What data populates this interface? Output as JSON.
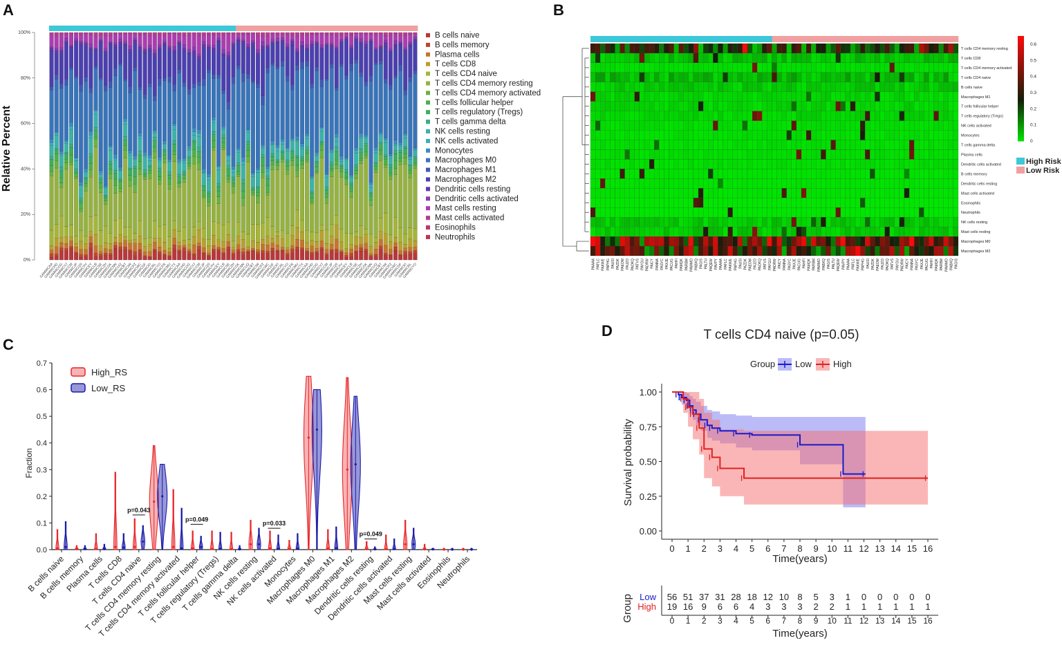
{
  "panels": {
    "a": {
      "label": "A",
      "ylabel": "Relative Percent",
      "yticks": [
        "0%",
        "20%",
        "40%",
        "60%",
        "80%",
        "100%"
      ],
      "legend": [
        {
          "name": "B cells naive",
          "color": "#b8373a"
        },
        {
          "name": "B cells memory",
          "color": "#c0452d"
        },
        {
          "name": "Plasma cells",
          "color": "#c5742c"
        },
        {
          "name": "T cells CD8",
          "color": "#b8a02c"
        },
        {
          "name": "T cells CD4 naive",
          "color": "#a6b536"
        },
        {
          "name": "T cells CD4 memory resting",
          "color": "#95b240"
        },
        {
          "name": "T cells CD4 memory activated",
          "color": "#6cb23f"
        },
        {
          "name": "T cells follicular helper",
          "color": "#4fb04a"
        },
        {
          "name": "T cells regulatory (Tregs)",
          "color": "#3eae5c"
        },
        {
          "name": "T cells gamma delta",
          "color": "#3aae83"
        },
        {
          "name": "NK cells resting",
          "color": "#3ab3a8"
        },
        {
          "name": "NK cells activated",
          "color": "#3aaec0"
        },
        {
          "name": "Monocytes",
          "color": "#3b8ec2"
        },
        {
          "name": "Macrophages M0",
          "color": "#3874ba"
        },
        {
          "name": "Macrophages M1",
          "color": "#3e5ab5"
        },
        {
          "name": "Macrophages M2",
          "color": "#4b3fb0"
        },
        {
          "name": "Dendritic cells resting",
          "color": "#6436ad"
        },
        {
          "name": "Dendritic cells activated",
          "color": "#8a3bb2"
        },
        {
          "name": "Mast cells resting",
          "color": "#ad3cb0"
        },
        {
          "name": "Mast cells activated",
          "color": "#b83c8d"
        },
        {
          "name": "Eosinophils",
          "color": "#b83a6b"
        },
        {
          "name": "Neutrophils",
          "color": "#b8374f"
        }
      ],
      "group_colors": {
        "high": "#3cc8d8",
        "low": "#f0a0a0"
      },
      "n_samples": 75,
      "n_high": 38
    },
    "b": {
      "label": "B",
      "rows": [
        "T cells CD4 memory resting",
        "T cells CD8",
        "T cells CD4 memory activated",
        "T cells CD4 naive",
        "B cells naive",
        "Macrophages M1",
        "T cells follicular helper",
        "T cells regulatory (Tregs)",
        "NK cells activated",
        "Monocytes",
        "T cells gamma delta",
        "Plasma cells",
        "Dendritic cells activated",
        "B cells memory",
        "Dendritic cells resting",
        "Mast cells activated",
        "Eosinophils",
        "Neutrophils",
        "NK cells resting",
        "Mast cells resting",
        "Macrophages M0",
        "Macrophages M2"
      ],
      "colorbar_ticks": [
        "0.6",
        "0.5",
        "0.4",
        "0.3",
        "0.2",
        "0.1",
        "0"
      ],
      "legend": [
        {
          "name": "High Risk",
          "color": "#3cc8d8"
        },
        {
          "name": "Low Risk",
          "color": "#f0a0a0"
        }
      ]
    },
    "c": {
      "label": "C",
      "ylabel": "Fraction",
      "legend": [
        {
          "name": "High_RS",
          "color": "#e8262a"
        },
        {
          "name": "Low_RS",
          "color": "#1a1aa8"
        }
      ],
      "pvalues": [
        {
          "text": "p=0.043",
          "index": 4
        },
        {
          "text": "p=0.049",
          "index": 7
        },
        {
          "text": "p=0.033",
          "index": 11
        },
        {
          "text": "p=0.049",
          "index": 16
        }
      ]
    },
    "d": {
      "label": "D",
      "title": "T cells CD4 naive (p=0.05)",
      "legend_title": "Group",
      "ylabel": "Survival probability",
      "xlabel": "Time(years)",
      "risk_ylabel": "Group",
      "risk_low_label": "Low",
      "risk_high_label": "High",
      "risk_low": [
        "56",
        "51",
        "37",
        "31",
        "28",
        "18",
        "12",
        "10",
        "8",
        "5",
        "3",
        "1",
        "0",
        "0",
        "0",
        "0",
        "0"
      ],
      "risk_high": [
        "19",
        "16",
        "9",
        "6",
        "6",
        "4",
        "3",
        "3",
        "3",
        "2",
        "2",
        "1",
        "1",
        "1",
        "1",
        "1",
        "1"
      ]
    }
  },
  "chart_data": [
    {
      "type": "bar",
      "title": "",
      "xlabel": "",
      "ylabel": "Relative Percent",
      "ylim": [
        0,
        100
      ],
      "stacked": true,
      "categories": [
        "B cells naive",
        "B cells memory",
        "Plasma cells",
        "T cells CD8",
        "T cells CD4 naive",
        "T cells CD4 memory resting",
        "T cells CD4 memory activated",
        "T cells follicular helper",
        "T cells regulatory (Tregs)",
        "T cells gamma delta",
        "NK cells resting",
        "NK cells activated",
        "Monocytes",
        "Macrophages M0",
        "Macrophages M1",
        "Macrophages M2",
        "Dendritic cells resting",
        "Dendritic cells activated",
        "Mast cells resting",
        "Mast cells activated",
        "Eosinophils",
        "Neutrophils"
      ],
      "mean_percent": [
        3,
        1,
        2,
        3,
        5,
        22,
        2,
        2,
        2,
        1,
        4,
        1,
        1,
        30,
        2,
        12,
        1,
        1,
        4,
        1,
        0,
        0
      ]
    },
    {
      "type": "heatmap",
      "title": "",
      "value_range": [
        0,
        0.6
      ],
      "rows": [
        "T cells CD4 memory resting",
        "T cells CD8",
        "T cells CD4 memory activated",
        "T cells CD4 naive",
        "B cells naive",
        "Macrophages M1",
        "T cells follicular helper",
        "T cells regulatory (Tregs)",
        "NK cells activated",
        "Monocytes",
        "T cells gamma delta",
        "Plasma cells",
        "Dendritic cells activated",
        "B cells memory",
        "Dendritic cells resting",
        "Mast cells activated",
        "Eosinophils",
        "Neutrophils",
        "NK cells resting",
        "Mast cells resting",
        "Macrophages M0",
        "Macrophages M2"
      ],
      "row_mean": [
        0.2,
        0.04,
        0.01,
        0.05,
        0.03,
        0.02,
        0.02,
        0.02,
        0.01,
        0.01,
        0.01,
        0.01,
        0.01,
        0.005,
        0.005,
        0.005,
        0,
        0,
        0.03,
        0.03,
        0.35,
        0.3
      ]
    },
    {
      "type": "violin",
      "title": "",
      "xlabel": "",
      "ylabel": "Fraction",
      "ylim": [
        0,
        0.7
      ],
      "yticks": [
        0,
        0.1,
        0.2,
        0.3,
        0.4,
        0.5,
        0.6,
        0.7
      ],
      "categories": [
        "B cells naive",
        "B cells memory",
        "Plasma cells",
        "T cells CD8",
        "T cells CD4 naive",
        "T cells CD4 memory resting",
        "T cells CD4 memory activated",
        "T cells follicular helper",
        "T cells regulatory (Tregs)",
        "T cells gamma delta",
        "NK cells resting",
        "NK cells activated",
        "Monocytes",
        "Macrophages M0",
        "Macrophages M1",
        "Macrophages M2",
        "Dendritic cells resting",
        "Dendritic cells activated",
        "Mast cells resting",
        "Mast cells activated",
        "Eosinophils",
        "Neutrophils"
      ],
      "series": [
        {
          "name": "High_RS",
          "max": [
            0.075,
            0.015,
            0.06,
            0.29,
            0.115,
            0.39,
            0.225,
            0.07,
            0.07,
            0.065,
            0.11,
            0.07,
            0.035,
            0.65,
            0.075,
            0.645,
            0.03,
            0.055,
            0.11,
            0.02,
            0.005,
            0.005
          ],
          "median": [
            0.005,
            0.002,
            0.003,
            0.01,
            0.01,
            0.18,
            0.01,
            0.005,
            0.003,
            0.002,
            0.02,
            0.005,
            0.003,
            0.42,
            0.005,
            0.3,
            0.002,
            0.002,
            0.02,
            0.001,
            0,
            0
          ]
        },
        {
          "name": "Low_RS",
          "max": [
            0.105,
            0.015,
            0.02,
            0.06,
            0.09,
            0.32,
            0.155,
            0.05,
            0.065,
            0.015,
            0.08,
            0.055,
            0.06,
            0.6,
            0.085,
            0.575,
            0.01,
            0.04,
            0.08,
            0.005,
            0.005,
            0.005
          ],
          "median": [
            0.01,
            0.002,
            0.002,
            0.008,
            0.03,
            0.2,
            0.005,
            0.01,
            0.003,
            0.001,
            0.02,
            0.003,
            0.004,
            0.45,
            0.006,
            0.32,
            0.001,
            0.002,
            0.02,
            0.001,
            0,
            0
          ]
        }
      ]
    },
    {
      "type": "line",
      "title": "T cells CD4 naive (p=0.05)",
      "xlabel": "Time(years)",
      "ylabel": "Survival probability",
      "xlim": [
        0,
        16
      ],
      "ylim": [
        0,
        1
      ],
      "x_ticks": [
        0,
        1,
        2,
        3,
        4,
        5,
        6,
        7,
        8,
        9,
        10,
        11,
        12,
        13,
        14,
        15,
        16
      ],
      "y_ticks": [
        0,
        0.25,
        0.5,
        0.75,
        1
      ],
      "series": [
        {
          "name": "Low",
          "color": "#1a1acc",
          "step_x": [
            0,
            0.4,
            0.6,
            0.9,
            1.1,
            1.3,
            1.5,
            1.8,
            2.2,
            2.5,
            3.0,
            4.0,
            5.0,
            8.0,
            10.7,
            12.1
          ],
          "step_y": [
            1.0,
            0.98,
            0.96,
            0.94,
            0.9,
            0.87,
            0.84,
            0.8,
            0.76,
            0.74,
            0.72,
            0.7,
            0.69,
            0.62,
            0.41,
            0.41
          ],
          "ci_upper": [
            1.0,
            1.0,
            1.0,
            0.99,
            0.97,
            0.95,
            0.93,
            0.9,
            0.87,
            0.86,
            0.84,
            0.83,
            0.82,
            0.82,
            0.82,
            0.82
          ],
          "ci_lower": [
            1.0,
            0.94,
            0.91,
            0.88,
            0.84,
            0.8,
            0.76,
            0.72,
            0.67,
            0.65,
            0.63,
            0.6,
            0.58,
            0.48,
            0.17,
            0.17
          ]
        },
        {
          "name": "High",
          "color": "#e02020",
          "step_x": [
            0,
            0.7,
            1.0,
            1.3,
            1.7,
            2.0,
            2.5,
            3.0,
            4.5,
            16.0
          ],
          "step_y": [
            1.0,
            0.95,
            0.89,
            0.84,
            0.74,
            0.59,
            0.53,
            0.45,
            0.38,
            0.38
          ],
          "ci_upper": [
            1.0,
            1.0,
            1.0,
            1.0,
            0.95,
            0.85,
            0.8,
            0.73,
            0.72,
            0.72
          ],
          "ci_lower": [
            1.0,
            0.85,
            0.75,
            0.66,
            0.55,
            0.38,
            0.32,
            0.25,
            0.19,
            0.19
          ]
        }
      ],
      "risk_table": {
        "Low": [
          56,
          51,
          37,
          31,
          28,
          18,
          12,
          10,
          8,
          5,
          3,
          1,
          0,
          0,
          0,
          0,
          0
        ],
        "High": [
          19,
          16,
          9,
          6,
          6,
          4,
          3,
          3,
          3,
          2,
          2,
          1,
          1,
          1,
          1,
          1,
          1
        ]
      }
    }
  ]
}
